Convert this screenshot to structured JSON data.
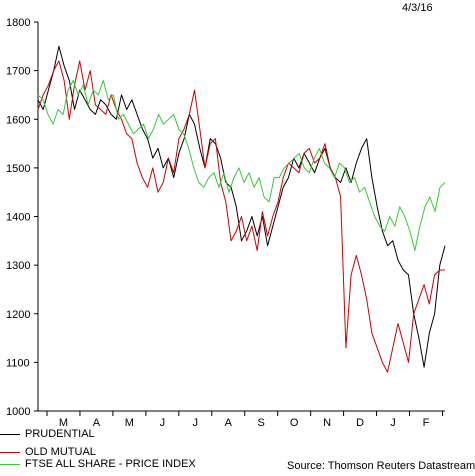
{
  "date": "4/3/16",
  "source": "Source: Thomson Reuters Datastream",
  "chart_data": {
    "type": "line",
    "ylim": [
      1000,
      1800
    ],
    "yticks": [
      1000,
      1100,
      1200,
      1300,
      1400,
      1500,
      1600,
      1700,
      1800
    ],
    "months": [
      "M",
      "A",
      "M",
      "J",
      "J",
      "A",
      "S",
      "O",
      "N",
      "D",
      "J",
      "F"
    ],
    "grid": false,
    "legend_position": "bottom-left",
    "series": [
      {
        "name": "PRUDENTIAL",
        "color": "#000000",
        "values": [
          1640,
          1620,
          1660,
          1700,
          1750,
          1710,
          1680,
          1620,
          1660,
          1640,
          1620,
          1610,
          1640,
          1630,
          1610,
          1600,
          1650,
          1620,
          1640,
          1610,
          1580,
          1560,
          1520,
          1540,
          1500,
          1520,
          1480,
          1530,
          1560,
          1610,
          1590,
          1540,
          1500,
          1560,
          1550,
          1520,
          1470,
          1460,
          1420,
          1350,
          1370,
          1400,
          1360,
          1400,
          1340,
          1380,
          1420,
          1460,
          1480,
          1520,
          1500,
          1530,
          1510,
          1490,
          1520,
          1540,
          1500,
          1480,
          1470,
          1500,
          1470,
          1510,
          1540,
          1560,
          1480,
          1420,
          1370,
          1340,
          1350,
          1310,
          1290,
          1280,
          1200,
          1150,
          1090,
          1160,
          1200,
          1300,
          1340
        ]
      },
      {
        "name": "OLD MUTUAL",
        "color": "#cc0000",
        "values": [
          1620,
          1650,
          1670,
          1700,
          1720,
          1680,
          1600,
          1670,
          1720,
          1660,
          1700,
          1630,
          1620,
          1610,
          1650,
          1620,
          1600,
          1570,
          1560,
          1510,
          1480,
          1460,
          1500,
          1450,
          1470,
          1520,
          1490,
          1560,
          1580,
          1610,
          1660,
          1580,
          1500,
          1550,
          1560,
          1470,
          1430,
          1350,
          1370,
          1400,
          1350,
          1380,
          1330,
          1410,
          1360,
          1400,
          1430,
          1480,
          1510,
          1500,
          1490,
          1530,
          1540,
          1510,
          1520,
          1550,
          1500,
          1480,
          1440,
          1130,
          1280,
          1320,
          1280,
          1230,
          1160,
          1130,
          1100,
          1080,
          1130,
          1180,
          1140,
          1100,
          1200,
          1230,
          1260,
          1220,
          1280,
          1290,
          1290
        ]
      },
      {
        "name": "FTSE ALL SHARE - PRICE INDEX",
        "color": "#33cc33",
        "values": [
          1650,
          1640,
          1610,
          1590,
          1620,
          1610,
          1660,
          1680,
          1650,
          1670,
          1630,
          1660,
          1650,
          1680,
          1640,
          1650,
          1600,
          1610,
          1590,
          1570,
          1580,
          1590,
          1560,
          1580,
          1610,
          1590,
          1600,
          1610,
          1580,
          1570,
          1540,
          1500,
          1470,
          1460,
          1480,
          1490,
          1460,
          1490,
          1450,
          1480,
          1500,
          1470,
          1490,
          1460,
          1480,
          1440,
          1430,
          1480,
          1480,
          1500,
          1510,
          1520,
          1530,
          1500,
          1490,
          1520,
          1540,
          1510,
          1500,
          1480,
          1510,
          1500,
          1470,
          1480,
          1450,
          1460,
          1430,
          1400,
          1380,
          1370,
          1400,
          1380,
          1420,
          1400,
          1370,
          1330,
          1380,
          1420,
          1440,
          1410,
          1460,
          1470
        ]
      }
    ]
  }
}
